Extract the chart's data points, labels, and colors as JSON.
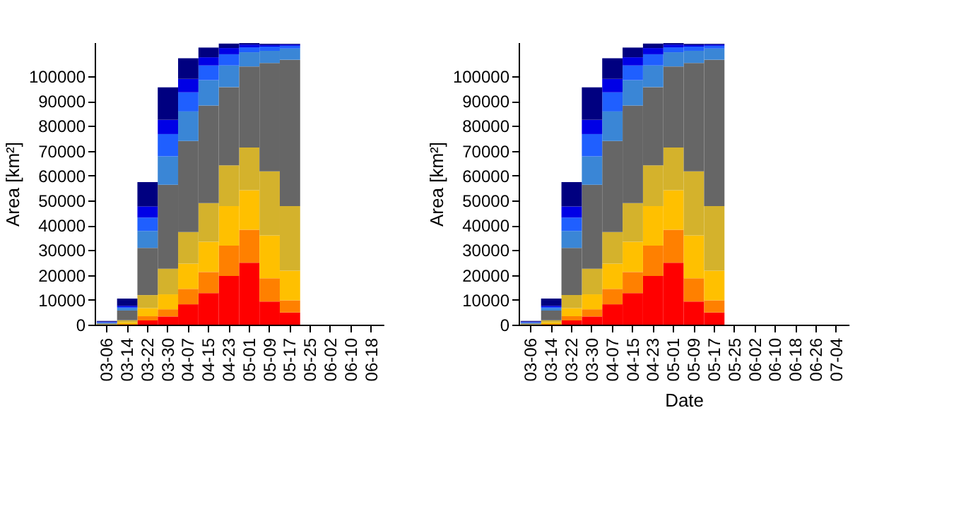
{
  "chart_data": [
    {
      "type": "bar",
      "stacked": true,
      "ylabel": "Area [km²]",
      "ylim": [
        0,
        113600
      ],
      "yticks": [
        0,
        10000,
        20000,
        30000,
        40000,
        50000,
        60000,
        70000,
        80000,
        90000,
        100000
      ],
      "categories": [
        "03-06",
        "03-14",
        "03-22",
        "03-30",
        "04-07",
        "04-15",
        "04-23",
        "05-01",
        "05-09",
        "05-17",
        "05-25",
        "06-02",
        "06-10",
        "06-18"
      ],
      "series": [
        {
          "color": "#ff0000",
          "values": [
            0,
            0,
            1700,
            3300,
            8200,
            12700,
            19600,
            24900,
            9300,
            4900,
            null,
            null,
            null,
            null
          ]
        },
        {
          "color": "#ff8000",
          "values": [
            0,
            300,
            1700,
            2900,
            6200,
            8500,
            12200,
            13300,
            9400,
            4900,
            null,
            null,
            null,
            null
          ]
        },
        {
          "color": "#ffc000",
          "values": [
            0,
            700,
            3300,
            6000,
            10200,
            12200,
            15900,
            15900,
            17200,
            11900,
            null,
            null,
            null,
            null
          ]
        },
        {
          "color": "#d4b22c",
          "values": [
            200,
            800,
            5200,
            10300,
            12700,
            15500,
            16400,
            17200,
            25800,
            26000,
            null,
            null,
            null,
            null
          ]
        },
        {
          "color": "#666666",
          "values": [
            300,
            3900,
            19000,
            33800,
            36600,
            39300,
            31500,
            32600,
            43600,
            58900,
            null,
            null,
            null,
            null
          ]
        },
        {
          "color": "#3a86d6",
          "values": [
            300,
            900,
            6800,
            11400,
            11900,
            10200,
            8700,
            5700,
            4900,
            4500,
            null,
            null,
            null,
            null
          ]
        },
        {
          "color": "#1f5fff",
          "values": [
            200,
            500,
            5400,
            9000,
            7700,
            5900,
            4500,
            2000,
            1700,
            1100,
            null,
            null,
            null,
            null
          ]
        },
        {
          "color": "#0000e6",
          "values": [
            200,
            500,
            4500,
            5700,
            5400,
            3300,
            2500,
            1100,
            600,
            500,
            null,
            null,
            null,
            null
          ]
        },
        {
          "color": "#000080",
          "values": [
            300,
            2900,
            9800,
            13100,
            8300,
            3900,
            1800,
            600,
            500,
            300,
            null,
            null,
            null,
            null
          ]
        }
      ]
    },
    {
      "type": "bar",
      "stacked": true,
      "ylabel": "Area [km²]",
      "xlabel": "Date",
      "ylim": [
        0,
        113600
      ],
      "yticks": [
        0,
        10000,
        20000,
        30000,
        40000,
        50000,
        60000,
        70000,
        80000,
        90000,
        100000
      ],
      "categories": [
        "03-06",
        "03-14",
        "03-22",
        "03-30",
        "04-07",
        "04-15",
        "04-23",
        "05-01",
        "05-09",
        "05-17",
        "05-25",
        "06-02",
        "06-10",
        "06-18",
        "06-26",
        "07-04"
      ],
      "series": [
        {
          "color": "#ff0000",
          "values": [
            0,
            0,
            1700,
            3300,
            8200,
            12700,
            19600,
            24900,
            9300,
            4900,
            null,
            null,
            null,
            null,
            null,
            null
          ]
        },
        {
          "color": "#ff8000",
          "values": [
            0,
            300,
            1700,
            2900,
            6200,
            8500,
            12200,
            13300,
            9400,
            4900,
            null,
            null,
            null,
            null,
            null,
            null
          ]
        },
        {
          "color": "#ffc000",
          "values": [
            0,
            700,
            3300,
            6000,
            10200,
            12200,
            15900,
            15900,
            17200,
            11900,
            null,
            null,
            null,
            null,
            null,
            null
          ]
        },
        {
          "color": "#d4b22c",
          "values": [
            200,
            800,
            5200,
            10300,
            12700,
            15500,
            16400,
            17200,
            25800,
            26000,
            null,
            null,
            null,
            null,
            null,
            null
          ]
        },
        {
          "color": "#666666",
          "values": [
            300,
            3900,
            19000,
            33800,
            36600,
            39300,
            31500,
            32600,
            43600,
            58900,
            null,
            null,
            null,
            null,
            null,
            null
          ]
        },
        {
          "color": "#3a86d6",
          "values": [
            300,
            900,
            6800,
            11400,
            11900,
            10200,
            8700,
            5700,
            4900,
            4500,
            null,
            null,
            null,
            null,
            null,
            null
          ]
        },
        {
          "color": "#1f5fff",
          "values": [
            200,
            500,
            5400,
            9000,
            7700,
            5900,
            4500,
            2000,
            1700,
            1100,
            null,
            null,
            null,
            null,
            null,
            null
          ]
        },
        {
          "color": "#0000e6",
          "values": [
            200,
            500,
            4500,
            5700,
            5400,
            3300,
            2500,
            1100,
            600,
            500,
            null,
            null,
            null,
            null,
            null,
            null
          ]
        },
        {
          "color": "#000080",
          "values": [
            300,
            2900,
            9800,
            13100,
            8300,
            3900,
            1800,
            600,
            500,
            300,
            null,
            null,
            null,
            null,
            null,
            null
          ]
        }
      ]
    }
  ]
}
